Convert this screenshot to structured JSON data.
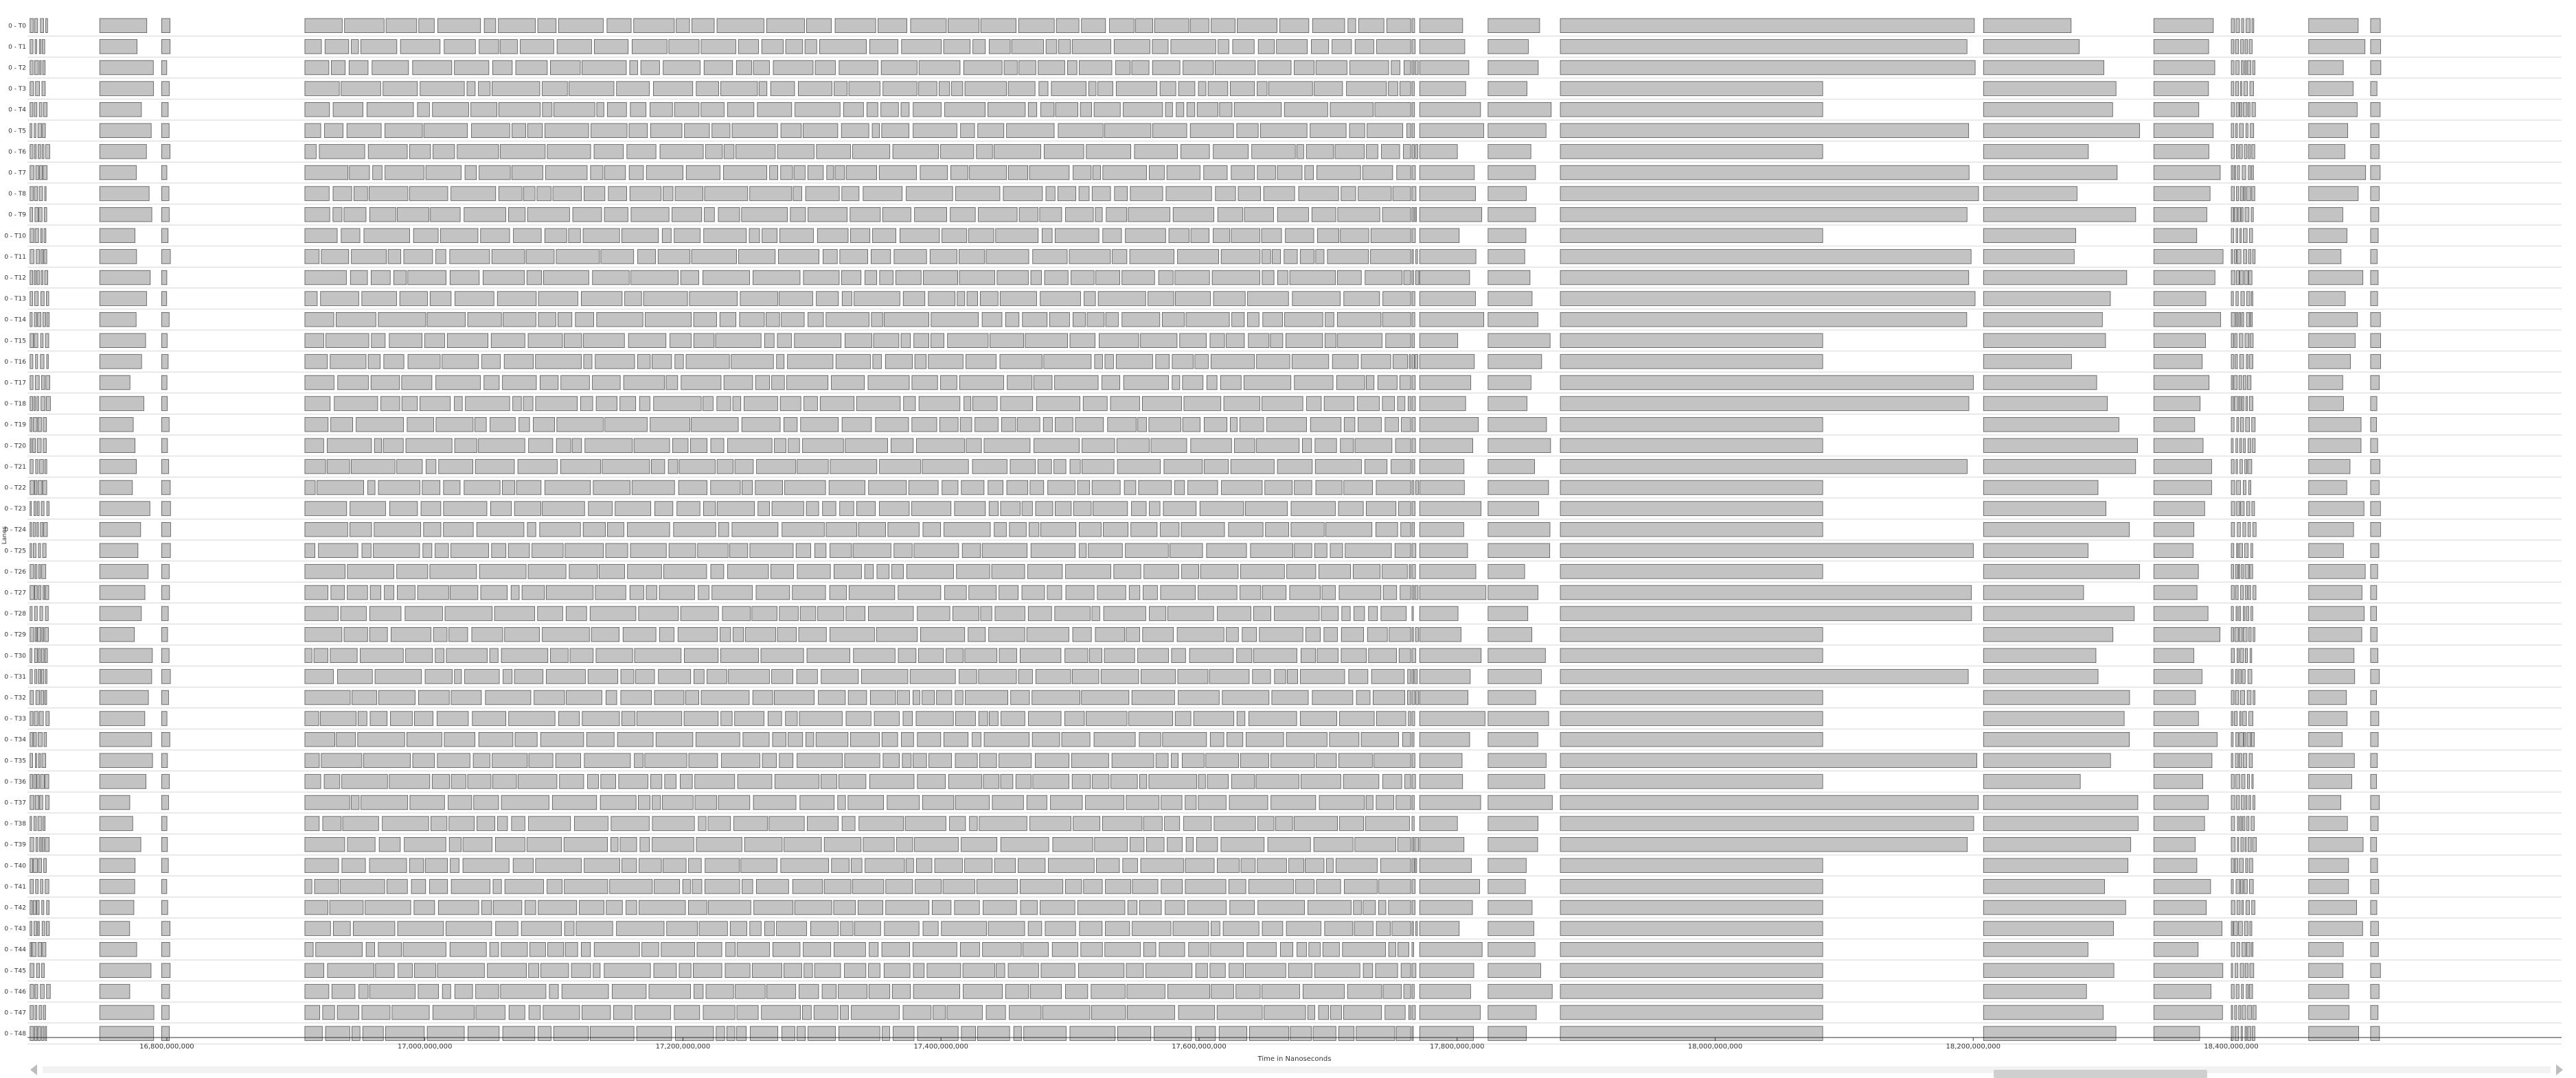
{
  "chart_data": {
    "type": "timeline",
    "xlabel": "Time in Nanoseconds",
    "ylabel": "Lanes",
    "xlim": [
      16692000000,
      18656000000
    ],
    "x_ticks": [
      {
        "value": 16800000000,
        "label": "16,800,000,000"
      },
      {
        "value": 17000000000,
        "label": "17,000,000,000"
      },
      {
        "value": 17200000000,
        "label": "17,200,000,000"
      },
      {
        "value": 17400000000,
        "label": "17,400,000,000"
      },
      {
        "value": 17600000000,
        "label": "17,600,000,000"
      },
      {
        "value": 17800000000,
        "label": "17,800,000,000"
      },
      {
        "value": 18000000000,
        "label": "18,000,000,000"
      },
      {
        "value": 18200000000,
        "label": "18,200,000,000"
      },
      {
        "value": 18400000000,
        "label": "18,400,000,000"
      }
    ],
    "lanes": [
      "0 - T0",
      "0 - T1",
      "0 - T2",
      "0 - T3",
      "0 - T4",
      "0 - T5",
      "0 - T6",
      "0 - T7",
      "0 - T8",
      "0 - T9",
      "0 - T10",
      "0 - T11",
      "0 - T12",
      "0 - T13",
      "0 - T14",
      "0 - T15",
      "0 - T16",
      "0 - T17",
      "0 - T18",
      "0 - T19",
      "0 - T20",
      "0 - T21",
      "0 - T22",
      "0 - T23",
      "0 - T24",
      "0 - T25",
      "0 - T26",
      "0 - T27",
      "0 - T28",
      "0 - T29",
      "0 - T30",
      "0 - T31",
      "0 - T32",
      "0 - T33",
      "0 - T34",
      "0 - T35",
      "0 - T36",
      "0 - T37",
      "0 - T38",
      "0 - T39",
      "0 - T40",
      "0 - T41",
      "0 - T42",
      "0 - T43",
      "0 - T44",
      "0 - T45",
      "0 - T46",
      "0 - T47",
      "0 - T48"
    ],
    "phases": [
      {
        "start": 16694000000,
        "end": 16707000000,
        "kind": "ticks"
      },
      {
        "start": 16748000000,
        "end": 16790000000,
        "kind": "block"
      },
      {
        "start": 16796000000,
        "end": 16803000000,
        "kind": "block"
      },
      {
        "start": 16907000000,
        "end": 17764000000,
        "kind": "dense"
      },
      {
        "start": 17765000000,
        "end": 17768000000,
        "kind": "ticks"
      },
      {
        "start": 17771000000,
        "end": 17823000000,
        "kind": "block"
      },
      {
        "start": 17824000000,
        "end": 17875000000,
        "kind": "block"
      },
      {
        "start": 17880000000,
        "end": 18208000000,
        "kind": "longblock"
      },
      {
        "start": 18208000000,
        "end": 18330000000,
        "kind": "block"
      },
      {
        "start": 18340000000,
        "end": 18395000000,
        "kind": "block"
      },
      {
        "start": 18400000000,
        "end": 18417000000,
        "kind": "ticks"
      },
      {
        "start": 18460000000,
        "end": 18505000000,
        "kind": "block"
      },
      {
        "start": 18508000000,
        "end": 18516000000,
        "kind": "block"
      }
    ],
    "fill_color": "#c3c3c3",
    "stroke_color": "#555555",
    "grid_color": "#d6d6d6",
    "grid": true,
    "legend": "none"
  },
  "scrollbar": {
    "thumb_start_fraction": 0.778,
    "thumb_end_fraction": 0.863
  }
}
